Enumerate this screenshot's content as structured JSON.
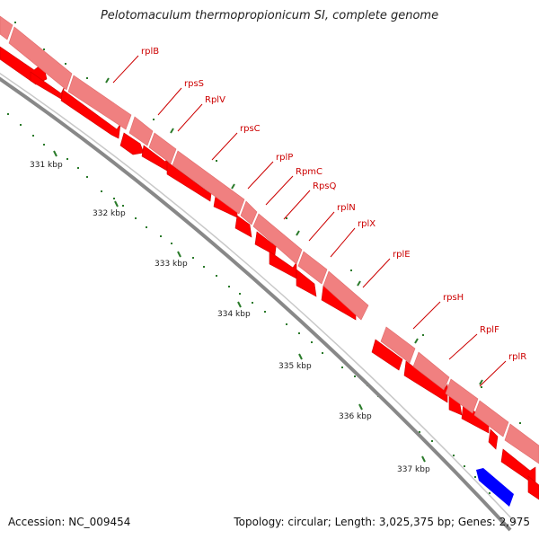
{
  "title": "Pelotomaculum thermopropionicum SI, complete genome",
  "footer": {
    "accession": "Accession: NC_009454",
    "topology": "Topology: circular; Length: 3,025,375 bp; Genes: 2,975"
  },
  "colors": {
    "cds_forward": "#ff0000",
    "gene_band": "#f08080",
    "reverse_gene": "#0000ff",
    "backbone": "#888888",
    "tick": "#2a7a2a",
    "label": "#cc0000"
  },
  "ticks": [
    "331 kbp",
    "332 kbp",
    "333 kbp",
    "334 kbp",
    "335 kbp",
    "336 kbp",
    "337 kbp"
  ],
  "genes": [
    "rplB",
    "rpsS",
    "RplV",
    "rpsC",
    "rplP",
    "RpmC",
    "RpsQ",
    "rplN",
    "rplX",
    "rplE",
    "rpsH",
    "RplF",
    "rplR"
  ]
}
